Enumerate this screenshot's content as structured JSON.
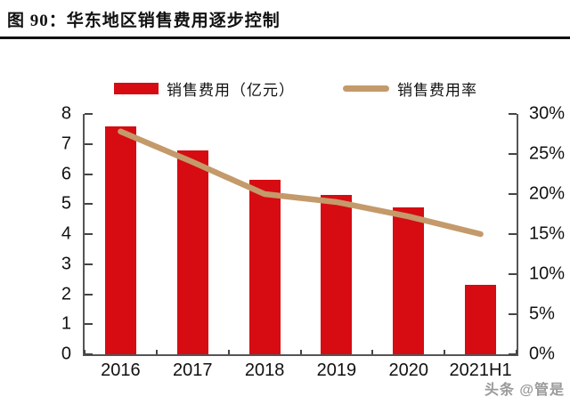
{
  "title": "图 90：华东地区销售费用逐步控制",
  "watermark": "头条 @管是",
  "colors": {
    "bar": "#d60c12",
    "line": "#c49a6b",
    "axis": "#555555",
    "title_rule": "#111111",
    "watermark": "#9a9a9a"
  },
  "legend": {
    "bar_label": "销售费用（亿元）",
    "line_label": "销售费用率"
  },
  "chart_data": {
    "type": "bar",
    "title": "华东地区销售费用逐步控制",
    "categories": [
      "2016",
      "2017",
      "2018",
      "2019",
      "2020",
      "2021H1"
    ],
    "series": [
      {
        "name": "销售费用（亿元）",
        "type": "bar",
        "axis": "left",
        "color": "#d60c12",
        "values": [
          7.6,
          6.8,
          5.8,
          5.3,
          4.9,
          2.3
        ]
      },
      {
        "name": "销售费用率",
        "type": "line",
        "axis": "right",
        "color": "#c49a6b",
        "unit": "%",
        "values": [
          27.8,
          24.0,
          20.0,
          19.0,
          17.2,
          15.0
        ]
      }
    ],
    "left_axis": {
      "min": 0,
      "max": 8,
      "step": 1,
      "ticks": [
        "0",
        "1",
        "2",
        "3",
        "4",
        "5",
        "6",
        "7",
        "8"
      ]
    },
    "right_axis": {
      "min": 0,
      "max": 30,
      "step": 5,
      "ticks": [
        "0%",
        "5%",
        "10%",
        "15%",
        "20%",
        "25%",
        "30%"
      ]
    },
    "grid": false,
    "legend_position": "top"
  }
}
